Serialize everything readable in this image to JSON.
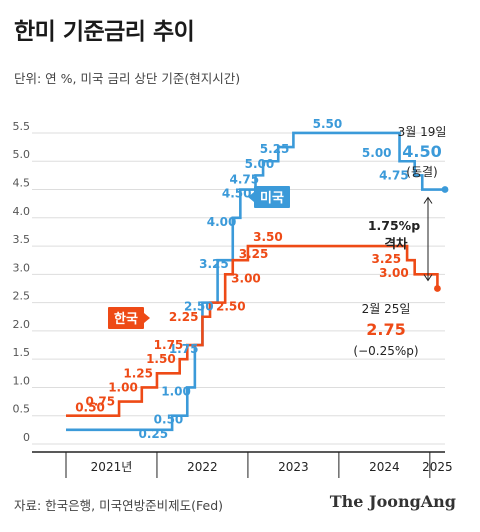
{
  "header": {
    "title": "한미 기준금리 추이",
    "subtitle": "단위: 연 %, 미국 금리 상단 기준(현지시간)"
  },
  "footer": {
    "source": "자료: 한국은행, 미국연방준비제도(Fed)",
    "brand": "The JoongAng"
  },
  "colors": {
    "us": "#3b9ad9",
    "kr": "#ee4a16",
    "axis": "#222222",
    "grid": "#dddddd"
  },
  "chart_data": {
    "type": "line",
    "step": true,
    "x_axis": {
      "labels": [
        "2021년",
        "2022",
        "2023",
        "2024",
        "2025"
      ],
      "range": [
        "2021-01",
        "2025-03"
      ]
    },
    "y_axis": {
      "ticks": [
        "0",
        "0.5",
        "1.0",
        "1.5",
        "2.0",
        "2.5",
        "3.0",
        "3.5",
        "4.0",
        "4.5",
        "5.0",
        "5.5"
      ],
      "range": [
        0,
        5.8
      ]
    },
    "series": [
      {
        "name": "미국",
        "key": "us",
        "points": [
          {
            "x": "2021-01",
            "y": 0.25,
            "label": ""
          },
          {
            "x": "2022-03",
            "y": 0.5,
            "label": "0.25"
          },
          {
            "x": "2022-05",
            "y": 1.0,
            "label": "0.50"
          },
          {
            "x": "2022-06",
            "y": 1.75,
            "label": "1.00"
          },
          {
            "x": "2022-07",
            "y": 2.5,
            "label": "1.75"
          },
          {
            "x": "2022-09",
            "y": 3.25,
            "label": "2.50"
          },
          {
            "x": "2022-11",
            "y": 4.0,
            "label": "3.25"
          },
          {
            "x": "2022-12",
            "y": 4.5,
            "label": "4.00"
          },
          {
            "x": "2023-02",
            "y": 4.75,
            "label": "4.50"
          },
          {
            "x": "2023-03",
            "y": 5.0,
            "label": "4.75"
          },
          {
            "x": "2023-05",
            "y": 5.25,
            "label": "5.00"
          },
          {
            "x": "2023-07",
            "y": 5.5,
            "label": "5.25"
          },
          {
            "x": "2024-09",
            "y": 5.0,
            "label": "5.50"
          },
          {
            "x": "2024-11",
            "y": 4.75,
            "label": "5.00"
          },
          {
            "x": "2024-12",
            "y": 4.5,
            "label": "4.75"
          },
          {
            "x": "2025-03",
            "y": 4.5,
            "label": ""
          }
        ]
      },
      {
        "name": "한국",
        "key": "kr",
        "points": [
          {
            "x": "2021-01",
            "y": 0.5,
            "label": "0.50"
          },
          {
            "x": "2021-08",
            "y": 0.75,
            "label": "0.75"
          },
          {
            "x": "2021-11",
            "y": 1.0,
            "label": "1.00"
          },
          {
            "x": "2022-01",
            "y": 1.25,
            "label": "1.25"
          },
          {
            "x": "2022-04",
            "y": 1.5,
            "label": "1.50"
          },
          {
            "x": "2022-05",
            "y": 1.75,
            "label": "1.75"
          },
          {
            "x": "2022-07",
            "y": 2.25,
            "label": "2.25"
          },
          {
            "x": "2022-08",
            "y": 2.5,
            "label": "2.50"
          },
          {
            "x": "2022-10",
            "y": 3.0,
            "label": "3.00"
          },
          {
            "x": "2022-11",
            "y": 3.25,
            "label": "3.25"
          },
          {
            "x": "2023-01",
            "y": 3.5,
            "label": "3.50"
          },
          {
            "x": "2024-10",
            "y": 3.25,
            "label": "3.25"
          },
          {
            "x": "2024-11",
            "y": 3.0,
            "label": "3.00"
          },
          {
            "x": "2025-02",
            "y": 2.75,
            "label": ""
          }
        ]
      }
    ],
    "series_tags": {
      "us": "미국",
      "kr": "한국"
    },
    "annotations": {
      "us_date": "3월 19일",
      "us_value": "4.50",
      "us_note": "(동결)",
      "gap_value": "1.75%p",
      "gap_label": "격차",
      "kr_date": "2월 25일",
      "kr_value": "2.75",
      "kr_note": "(−0.25%p)"
    }
  }
}
